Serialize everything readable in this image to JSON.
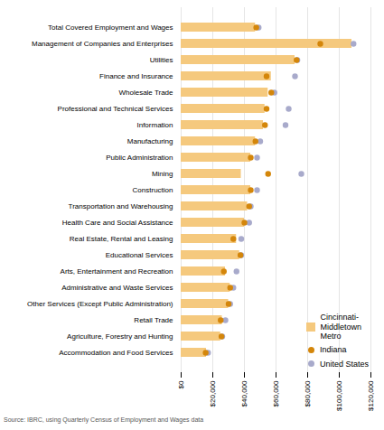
{
  "chart_data": {
    "type": "bar",
    "orientation": "horizontal",
    "caption": "Source: IBRC, using Quarterly Census of Employment and Wages data",
    "categories": [
      "Total Covered Employment and Wages",
      "Management of Companies and Enterprises",
      "Utilities",
      "Finance and Insurance",
      "Wholesale Trade",
      "Professional and Technical Services",
      "Information",
      "Manufacturing",
      "Public Administration",
      "Mining",
      "Construction",
      "Transportation and Warehousing",
      "Health Care and Social Assistance",
      "Real Estate, Rental and Leasing",
      "Educational Services",
      "Arts, Entertainment and Recreation",
      "Administrative and Waste Services",
      "Other Services (Except Public Administration)",
      "Retail Trade",
      "Agriculture, Forestry and Hunting",
      "Accommodation and Food Services"
    ],
    "series": [
      {
        "name": "Cincinnati-\nMiddletown\nMetro",
        "type": "bar",
        "color": "#f5c97e",
        "values": [
          47000,
          108000,
          72000,
          57000,
          55000,
          53000,
          52000,
          47000,
          44000,
          38000,
          44000,
          42000,
          40000,
          35000,
          37000,
          28000,
          31000,
          30000,
          26000,
          25000,
          16000
        ]
      },
      {
        "name": "Indiana",
        "type": "scatter",
        "marker": "circle",
        "color": "#d4860a",
        "values": [
          47500,
          88000,
          73000,
          54000,
          57000,
          54000,
          53000,
          47000,
          44000,
          55000,
          44000,
          43000,
          40000,
          33000,
          37500,
          27000,
          31000,
          30000,
          25000,
          25500,
          15500
        ]
      },
      {
        "name": "United States",
        "type": "scatter",
        "marker": "circle",
        "color": "#a8aacb",
        "values": [
          49000,
          109000,
          73500,
          72000,
          59000,
          68000,
          66000,
          50000,
          48000,
          76000,
          48000,
          44000,
          43000,
          38000,
          38000,
          35000,
          33000,
          31000,
          28000,
          26000,
          17000
        ]
      }
    ],
    "xlim": [
      0,
      120000
    ],
    "xticks": [
      {
        "value": 0,
        "label": "$0"
      },
      {
        "value": 20000,
        "label": "$20,000"
      },
      {
        "value": 40000,
        "label": "$40,000"
      },
      {
        "value": 60000,
        "label": "$60,000"
      },
      {
        "value": 80000,
        "label": "$80,000"
      },
      {
        "value": 100000,
        "label": "$100,000"
      },
      {
        "value": 120000,
        "label": "$120,000"
      }
    ],
    "grid": true,
    "legend": "lower right"
  }
}
